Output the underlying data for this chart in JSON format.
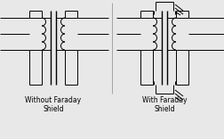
{
  "bg_color": "#e8e8e8",
  "line_color": "#000000",
  "fig_width": 2.53,
  "fig_height": 1.56,
  "dpi": 100,
  "label_left": "Without Faraday\nShield",
  "label_right": "With Faraday\nShield",
  "font_size": 5.5
}
